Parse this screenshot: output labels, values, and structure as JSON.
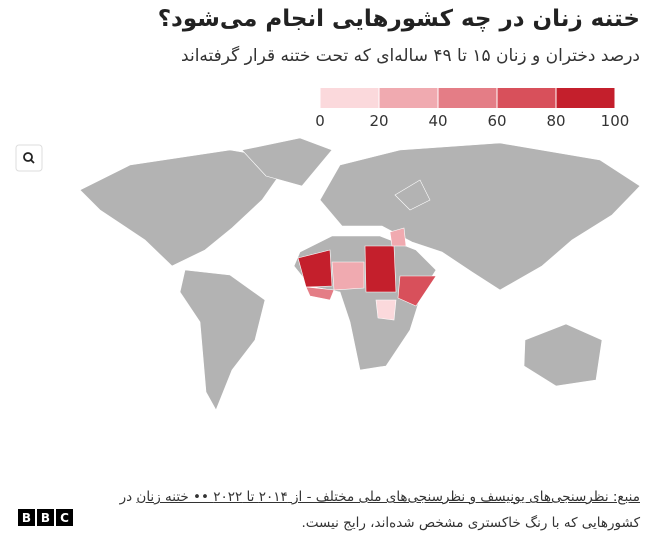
{
  "header": {
    "title": "ختنه زنان در چه کشورهایی انجام می‌شود؟",
    "subtitle": "درصد دختران و زنان ۱۵ تا ۴۹ ساله‌ای که تحت ختنه قرار گرفته‌اند"
  },
  "legend": {
    "range": [
      0,
      100
    ],
    "ticks": [
      0,
      20,
      40,
      60,
      80,
      100
    ],
    "colors": [
      "#fbd9dc",
      "#f0aab0",
      "#e47d86",
      "#d8505b",
      "#c41f2c"
    ]
  },
  "footer": {
    "source": "منبع: نظرسنجی‌های یونیسف و نظرسنجی‌های ملی مختلف - از ۲۰۱۴ تا ۲۰۲۲ •• ختنه زنان",
    "note": "در کشورهایی که با رنگ خاکستری مشخص شده‌اند، رایج نیست.",
    "logo": [
      "B",
      "B",
      "C"
    ]
  }
}
